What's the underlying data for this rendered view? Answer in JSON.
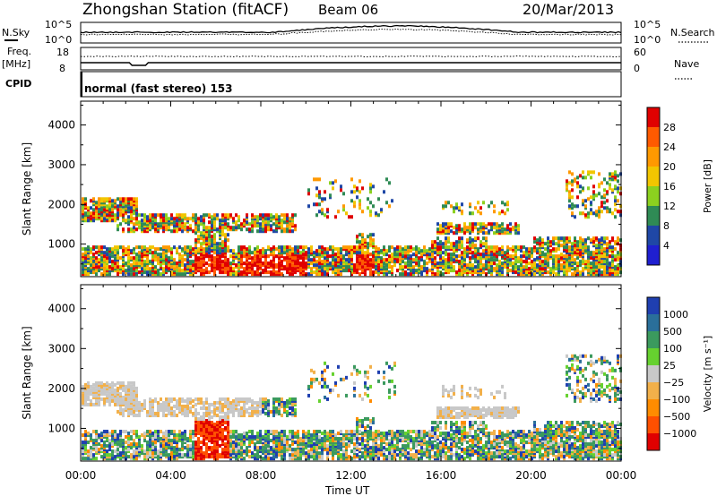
{
  "header": {
    "station": "Zhongshan Station (fitACF)",
    "beam": "Beam 06",
    "date": "20/Mar/2013"
  },
  "status_panels": {
    "nsky_label": "N.Sky",
    "nsky_ticks": [
      "10^5",
      "10^0"
    ],
    "nsearch_label": "N.Search",
    "nsearch_ticks": [
      "10^5",
      "10^0"
    ],
    "freq_label": "Freq.",
    "freq_unit": "[MHz]",
    "freq_ticks": [
      "18",
      "8"
    ],
    "nave_label": "Nave",
    "nave_ticks": [
      "60",
      "0"
    ],
    "cpid_label": "CPID",
    "cpid_value": "normal (fast stereo) 153"
  },
  "chart_data": [
    {
      "type": "heatmap",
      "name": "Power panel",
      "ylabel": "Slant Range [km]",
      "y_ticks": [
        1000,
        2000,
        3000,
        4000
      ],
      "ylim": [
        180,
        4600
      ],
      "x_ticks": [
        "00:00",
        "04:00",
        "08:00",
        "12:00",
        "16:00",
        "20:00",
        "00:00"
      ],
      "xlim_hours": [
        0,
        24
      ],
      "colorbar": {
        "label": "Power [dB]",
        "ticks": [
          "28",
          "24",
          "20",
          "16",
          "12",
          "8",
          "4"
        ],
        "colors": [
          "#e00000",
          "#ff5a00",
          "#ff9900",
          "#f2c600",
          "#8cd11f",
          "#2f8b55",
          "#1f47a6",
          "#1f1fd0"
        ]
      }
    },
    {
      "type": "heatmap",
      "name": "Velocity panel",
      "ylabel": "Slant Range [km]",
      "y_ticks": [
        1000,
        2000,
        3000,
        4000
      ],
      "ylim": [
        180,
        4600
      ],
      "x_ticks": [
        "00:00",
        "04:00",
        "08:00",
        "12:00",
        "16:00",
        "20:00",
        "00:00"
      ],
      "xlim_hours": [
        0,
        24
      ],
      "xlabel": "Time UT",
      "colorbar": {
        "label": "Velocity [m s⁻¹]",
        "ticks": [
          "1000",
          "500",
          "100",
          "25",
          "−25",
          "−100",
          "−500",
          "−1000"
        ],
        "colors": [
          "#1f3fb0",
          "#2a6f9a",
          "#3b9a5e",
          "#66d12f",
          "#c8c8c8",
          "#f2b04a",
          "#ff8c00",
          "#ff5000",
          "#e00000"
        ]
      }
    }
  ],
  "colors": {
    "axis": "#000000",
    "background": "#ffffff"
  }
}
